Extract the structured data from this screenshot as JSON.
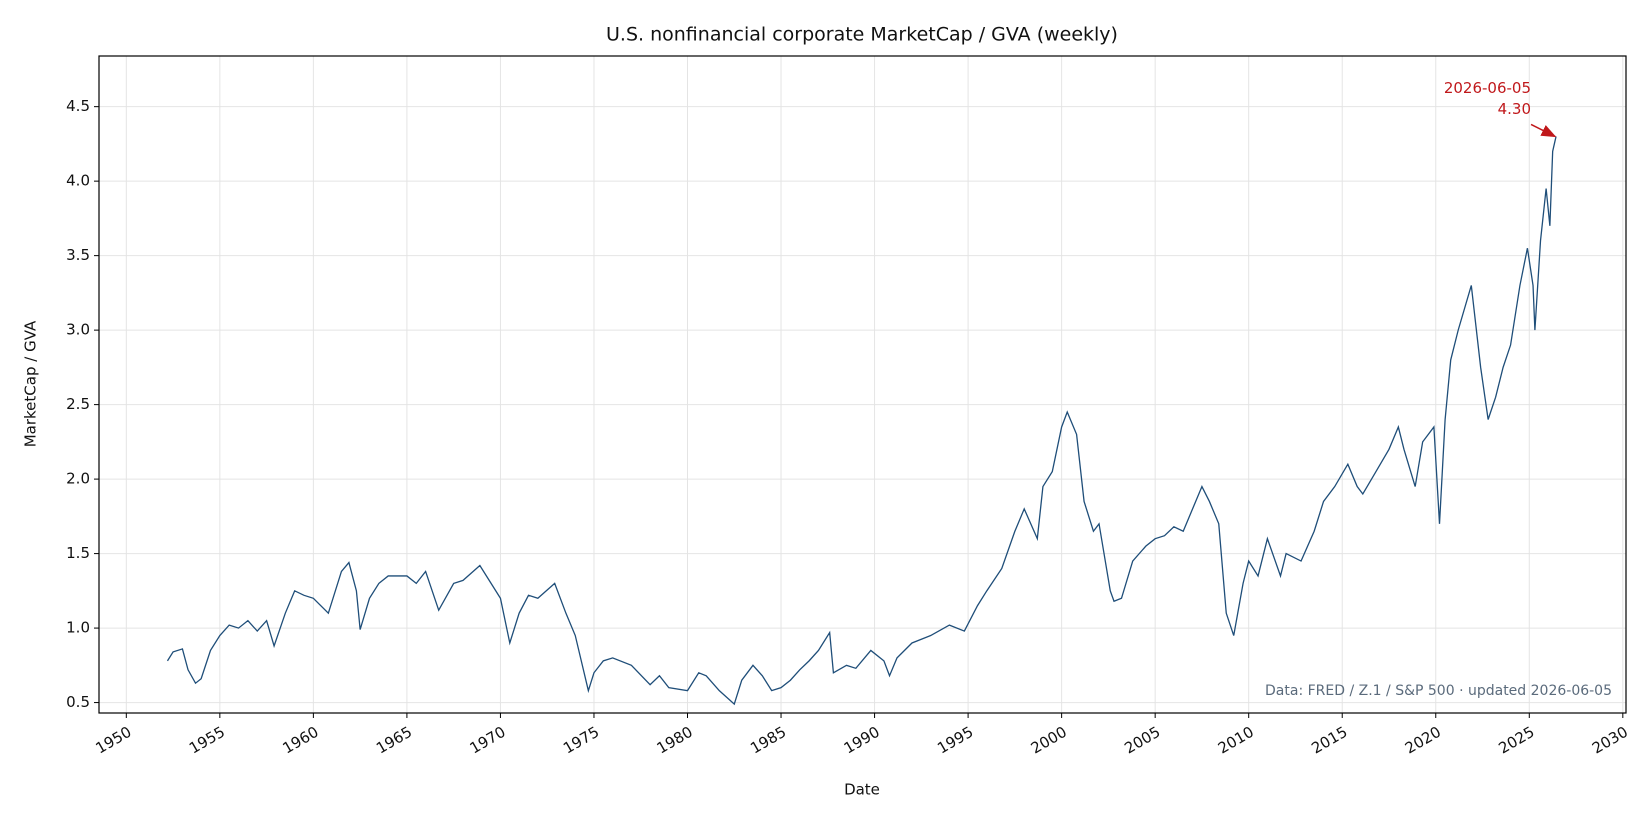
{
  "chart_data": {
    "type": "line",
    "title": "U.S. nonfinancial corporate MarketCap / GVA (weekly)",
    "xlabel": "Date",
    "ylabel": "MarketCap / GVA",
    "xlim": [
      1948.54,
      2030.17
    ],
    "xticks": [
      1950,
      1955,
      1960,
      1965,
      1970,
      1975,
      1980,
      1985,
      1990,
      1995,
      2000,
      2005,
      2010,
      2015,
      2020,
      2025,
      2030
    ],
    "ylim": [
      0.43,
      4.84
    ],
    "yticks": [
      {
        "value": 0.5,
        "label": "0.5"
      },
      {
        "value": 1,
        "label": "1.0"
      },
      {
        "value": 1.5,
        "label": "1.5"
      },
      {
        "value": 2,
        "label": "2.0"
      },
      {
        "value": 2.5,
        "label": "2.5"
      },
      {
        "value": 3,
        "label": "3.0"
      },
      {
        "value": 3.5,
        "label": "3.5"
      },
      {
        "value": 4,
        "label": "4.0"
      },
      {
        "value": 4.5,
        "label": "4.5"
      }
    ],
    "grid": true,
    "series": [
      {
        "color": "#1f4e79",
        "x": [
          1952.2,
          1952.5,
          1953.0,
          1953.3,
          1953.7,
          1954.0,
          1954.5,
          1955.0,
          1955.5,
          1956.0,
          1956.5,
          1957.0,
          1957.5,
          1957.9,
          1958.5,
          1959.0,
          1959.5,
          1960.0,
          1960.8,
          1961.5,
          1961.9,
          1962.3,
          1962.5,
          1963.0,
          1963.5,
          1964.0,
          1965.0,
          1965.5,
          1966.0,
          1966.7,
          1967.5,
          1968.0,
          1968.9,
          1969.5,
          1970.0,
          1970.5,
          1971.0,
          1971.5,
          1972.0,
          1972.9,
          1973.5,
          1974.0,
          1974.7,
          1975.0,
          1975.5,
          1976.0,
          1977.0,
          1978.0,
          1978.5,
          1979.0,
          1980.0,
          1980.6,
          1981.0,
          1981.7,
          1982.5,
          1982.9,
          1983.5,
          1984.0,
          1984.5,
          1985.0,
          1985.5,
          1986.0,
          1986.5,
          1987.0,
          1987.6,
          1987.8,
          1988.5,
          1989.0,
          1989.8,
          1990.5,
          1990.8,
          1991.2,
          1992.0,
          1993.0,
          1994.0,
          1994.8,
          1995.5,
          1996.0,
          1996.8,
          1997.5,
          1998.0,
          1998.7,
          1999.0,
          1999.5,
          2000.0,
          2000.3,
          2000.8,
          2001.2,
          2001.7,
          2002.0,
          2002.6,
          2002.8,
          2003.2,
          2003.8,
          2004.5,
          2005.0,
          2005.5,
          2006.0,
          2006.5,
          2007.0,
          2007.5,
          2007.9,
          2008.4,
          2008.8,
          2009.2,
          2009.7,
          2010.0,
          2010.5,
          2011.0,
          2011.7,
          2012.0,
          2012.8,
          2013.5,
          2014.0,
          2014.6,
          2015.3,
          2015.8,
          2016.1,
          2016.8,
          2017.5,
          2018.0,
          2018.3,
          2018.9,
          2019.3,
          2019.9,
          2020.2,
          2020.5,
          2020.8,
          2021.2,
          2021.9,
          2022.4,
          2022.8,
          2023.2,
          2023.6,
          2024.0,
          2024.5,
          2024.9,
          2025.2,
          2025.3,
          2025.6,
          2025.9,
          2026.1,
          2026.25,
          2026.43
        ],
        "values": [
          0.78,
          0.84,
          0.86,
          0.72,
          0.63,
          0.66,
          0.85,
          0.95,
          1.02,
          1.0,
          1.05,
          0.98,
          1.05,
          0.88,
          1.1,
          1.25,
          1.22,
          1.2,
          1.1,
          1.38,
          1.44,
          1.25,
          0.99,
          1.2,
          1.3,
          1.35,
          1.35,
          1.3,
          1.38,
          1.12,
          1.3,
          1.32,
          1.42,
          1.3,
          1.2,
          0.9,
          1.1,
          1.22,
          1.2,
          1.3,
          1.1,
          0.95,
          0.58,
          0.7,
          0.78,
          0.8,
          0.75,
          0.62,
          0.68,
          0.6,
          0.58,
          0.7,
          0.68,
          0.58,
          0.49,
          0.65,
          0.75,
          0.68,
          0.58,
          0.6,
          0.65,
          0.72,
          0.78,
          0.85,
          0.97,
          0.7,
          0.75,
          0.73,
          0.85,
          0.78,
          0.68,
          0.8,
          0.9,
          0.95,
          1.02,
          0.98,
          1.15,
          1.25,
          1.4,
          1.65,
          1.8,
          1.6,
          1.95,
          2.05,
          2.35,
          2.45,
          2.3,
          1.85,
          1.65,
          1.7,
          1.25,
          1.18,
          1.2,
          1.45,
          1.55,
          1.6,
          1.62,
          1.68,
          1.65,
          1.8,
          1.95,
          1.85,
          1.7,
          1.1,
          0.95,
          1.3,
          1.45,
          1.35,
          1.6,
          1.35,
          1.5,
          1.45,
          1.65,
          1.85,
          1.95,
          2.1,
          1.95,
          1.9,
          2.05,
          2.2,
          2.35,
          2.2,
          1.95,
          2.25,
          2.35,
          1.7,
          2.4,
          2.8,
          3.0,
          3.3,
          2.75,
          2.4,
          2.55,
          2.75,
          2.9,
          3.3,
          3.55,
          3.3,
          3.0,
          3.6,
          3.95,
          3.7,
          4.2,
          4.3
        ]
      }
    ],
    "annotation": {
      "text": "2026-06-05",
      "value": 4.3,
      "label": "4.30",
      "color": "#c0181b"
    },
    "source": "Data: FRED / Z.1 / S&P 500 · updated 2026-06-05"
  }
}
